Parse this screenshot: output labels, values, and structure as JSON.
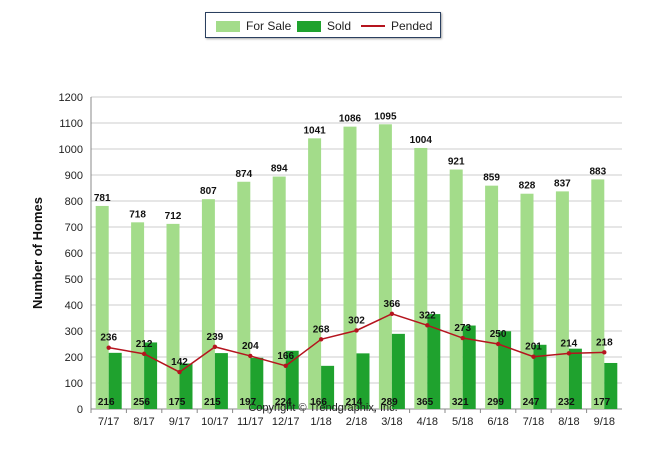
{
  "chart_data": {
    "type": "bar",
    "title": "",
    "xlabel": "",
    "ylabel": "Number of Homes",
    "ylim": [
      0,
      1200
    ],
    "yticks": [
      0,
      100,
      200,
      300,
      400,
      500,
      600,
      700,
      800,
      900,
      1000,
      1100,
      1200
    ],
    "grid": true,
    "legend_placement": "top-center",
    "categories": [
      "7/17",
      "8/17",
      "9/17",
      "10/17",
      "11/17",
      "12/17",
      "1/18",
      "2/18",
      "3/18",
      "4/18",
      "5/18",
      "6/18",
      "7/18",
      "8/18",
      "9/18"
    ],
    "series": [
      {
        "name": "For Sale",
        "kind": "bar",
        "color": "#a3dc8a",
        "values": [
          781,
          718,
          712,
          807,
          874,
          894,
          1041,
          1086,
          1095,
          1004,
          921,
          859,
          828,
          837,
          883
        ]
      },
      {
        "name": "Sold",
        "kind": "bar",
        "color": "#1fa22e",
        "values": [
          216,
          256,
          175,
          215,
          197,
          224,
          166,
          214,
          289,
          365,
          321,
          299,
          247,
          232,
          177
        ]
      },
      {
        "name": "Pended",
        "kind": "line",
        "color": "#b5141e",
        "values": [
          236,
          212,
          142,
          239,
          204,
          166,
          268,
          302,
          366,
          322,
          273,
          250,
          201,
          214,
          218
        ]
      }
    ]
  },
  "footer": {
    "copyright": "Copyright © Trendgraphix, Inc."
  }
}
